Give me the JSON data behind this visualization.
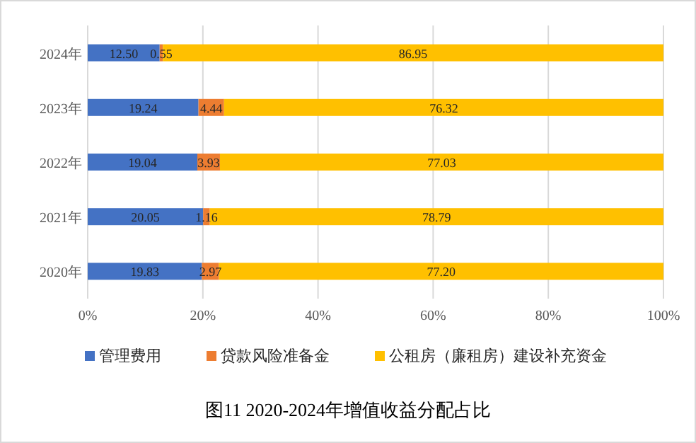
{
  "chart_data": {
    "type": "bar",
    "orientation": "horizontal",
    "stacked": true,
    "title": "图11 2020-2024年增值收益分配占比",
    "categories": [
      "2024年",
      "2023年",
      "2022年",
      "2021年",
      "2020年"
    ],
    "series": [
      {
        "name": "管理费用",
        "color": "#4472c4",
        "values": [
          12.5,
          19.24,
          19.04,
          20.05,
          19.83
        ],
        "value_labels": [
          "12.50",
          "19.24",
          "19.04",
          "20.05",
          "19.83"
        ]
      },
      {
        "name": "贷款风险准备金",
        "color": "#ed7d31",
        "values": [
          0.55,
          4.44,
          3.93,
          1.16,
          2.97
        ],
        "value_labels": [
          "0.55",
          "4.44",
          "3.93",
          "1.16",
          "2.97"
        ]
      },
      {
        "name": "公租房（廉租房）建设补充资金",
        "color": "#ffc000",
        "values": [
          86.95,
          76.32,
          77.03,
          78.79,
          77.2
        ],
        "value_labels": [
          "86.95",
          "76.32",
          "77.03",
          "78.79",
          "77.20"
        ]
      }
    ],
    "xlim": [
      0,
      100
    ],
    "xticks": [
      {
        "value": 0,
        "label": "0%"
      },
      {
        "value": 20,
        "label": "20%"
      },
      {
        "value": 40,
        "label": "40%"
      },
      {
        "value": 60,
        "label": "60%"
      },
      {
        "value": 80,
        "label": "80%"
      },
      {
        "value": 100,
        "label": "100%"
      }
    ],
    "grid": "x",
    "legend": "bottom"
  }
}
